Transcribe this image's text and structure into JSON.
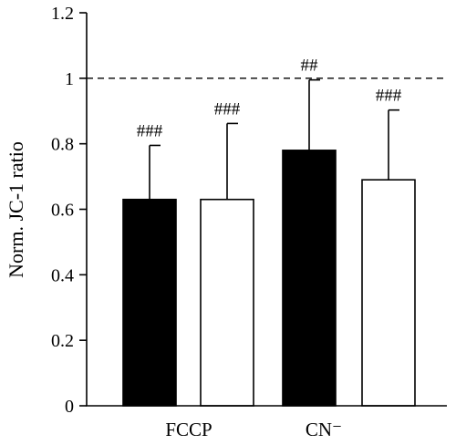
{
  "chart_data": {
    "type": "bar",
    "ylabel": "Norm. JC-1 ratio",
    "ylim": [
      0,
      1.2
    ],
    "yticks": [
      "0",
      "0.2",
      "0.4",
      "0.6",
      "0.8",
      "1",
      "1.2"
    ],
    "reference_line": 1,
    "categories": [
      "FCCP",
      "CN⁻"
    ],
    "bars": [
      {
        "category": "FCCP",
        "fill": "#000000",
        "value": 0.63,
        "error_upper": 0.795,
        "significance": "###"
      },
      {
        "category": "FCCP",
        "fill": "#ffffff",
        "value": 0.63,
        "error_upper": 0.862,
        "significance": "###"
      },
      {
        "category": "CN⁻",
        "fill": "#000000",
        "value": 0.78,
        "error_upper": 0.995,
        "significance": "##"
      },
      {
        "category": "CN⁻",
        "fill": "#ffffff",
        "value": 0.69,
        "error_upper": 0.903,
        "significance": "###"
      }
    ]
  }
}
